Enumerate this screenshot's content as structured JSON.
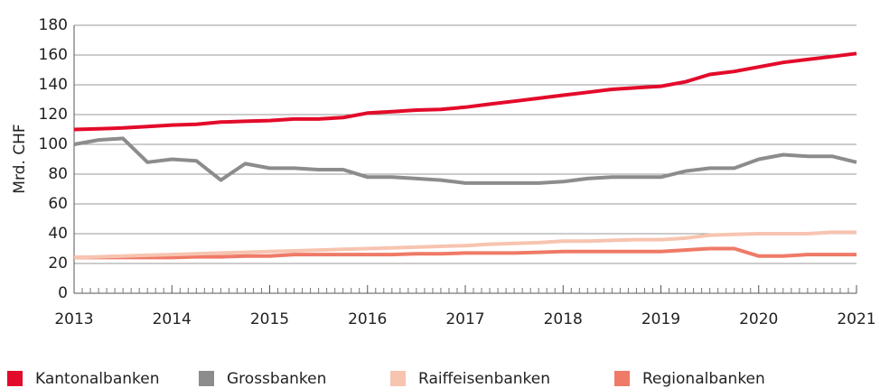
{
  "chart_data": {
    "type": "line",
    "y_label": "Mrd. CHF",
    "x": [
      2013,
      2013.25,
      2013.5,
      2013.75,
      2014,
      2014.25,
      2014.5,
      2014.75,
      2015,
      2015.25,
      2015.5,
      2015.75,
      2016,
      2016.25,
      2016.5,
      2016.75,
      2017,
      2017.25,
      2017.5,
      2017.75,
      2018,
      2018.25,
      2018.5,
      2018.75,
      2019,
      2019.25,
      2019.5,
      2019.75,
      2020,
      2020.25,
      2020.5,
      2020.75,
      2021
    ],
    "series": [
      {
        "name": "Kantonalbanken",
        "color": "#e30b2a",
        "values": [
          110,
          110.5,
          111,
          112,
          113,
          113.5,
          115,
          115.5,
          116,
          117,
          117,
          118,
          121,
          122,
          123,
          123.5,
          125,
          127,
          129,
          131,
          133,
          135,
          137,
          138,
          139,
          142,
          147,
          149,
          152,
          155,
          157,
          159,
          161
        ]
      },
      {
        "name": "Grossbanken",
        "color": "#8c8c8c",
        "values": [
          100,
          103,
          104,
          88,
          90,
          89,
          76,
          87,
          84,
          84,
          83,
          83,
          78,
          78,
          77,
          76,
          74,
          74,
          74,
          74,
          75,
          77,
          78,
          78,
          78,
          82,
          84,
          84,
          90,
          93,
          92,
          92,
          88
        ]
      },
      {
        "name": "Raiffeisenbanken",
        "color": "#f7c4b0",
        "values": [
          24,
          24.5,
          25,
          25.5,
          26,
          26.5,
          27,
          27.5,
          28,
          28.5,
          29,
          29.5,
          30,
          30.5,
          31,
          31.5,
          32,
          33,
          33.5,
          34,
          35,
          35,
          35.5,
          36,
          36,
          37,
          39,
          39.5,
          40,
          40,
          40,
          41,
          41
        ]
      },
      {
        "name": "Regionalbanken",
        "color": "#ef7a67",
        "values": [
          24,
          24,
          24,
          24,
          24,
          24.5,
          24.5,
          25,
          25,
          26,
          26,
          26,
          26,
          26,
          26.5,
          26.5,
          27,
          27,
          27,
          27.5,
          28,
          28,
          28,
          28,
          28,
          29,
          30,
          30,
          25,
          25,
          26,
          26,
          26
        ]
      }
    ],
    "xlim": [
      2013,
      2021
    ],
    "xticks": [
      2013,
      2014,
      2015,
      2016,
      2017,
      2018,
      2019,
      2020,
      2021
    ],
    "ylim": [
      0,
      180
    ],
    "yticks": [
      0,
      20,
      40,
      60,
      80,
      100,
      120,
      140,
      160,
      180
    ],
    "grid": true
  }
}
